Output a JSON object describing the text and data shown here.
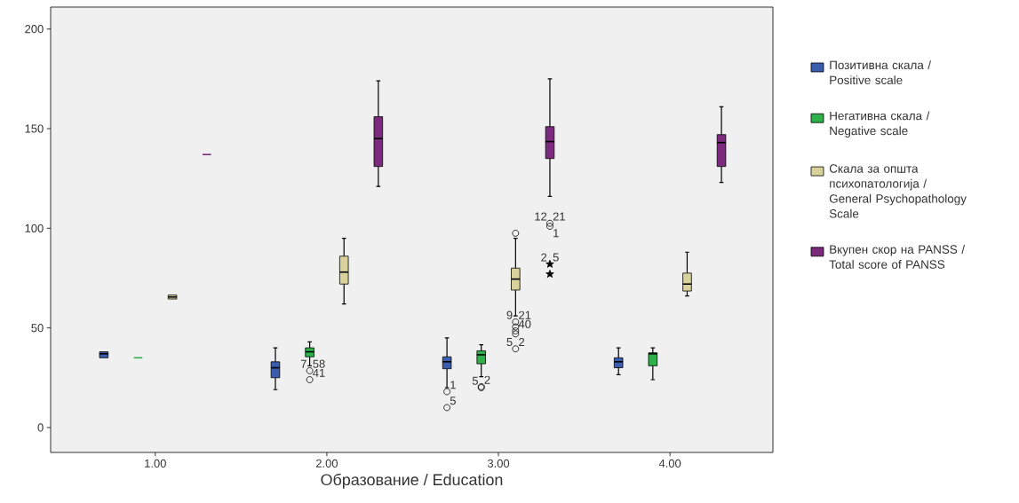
{
  "chart_data": {
    "type": "box",
    "xlabel": "Образование / Education",
    "xlim": [
      0.39,
      4.6
    ],
    "xticks": [
      {
        "value": 1,
        "label": "1.00"
      },
      {
        "value": 2,
        "label": "2.00"
      },
      {
        "value": 3,
        "label": "3.00"
      },
      {
        "value": 4,
        "label": "4.00"
      }
    ],
    "ylim": [
      -12.5,
      211
    ],
    "yticks": [
      0,
      50,
      100,
      150,
      200
    ],
    "legend": "right",
    "grid": false,
    "series": [
      {
        "name": "Позитивна скала / Positive scale",
        "color": "#3a5dae",
        "x": [
          0.7,
          1.7,
          2.7,
          3.7
        ],
        "boxes": [
          {
            "low": 35,
            "q1": 35,
            "median": 37,
            "q3": 38,
            "high": 38
          },
          {
            "low": 19,
            "q1": 25,
            "median": 30,
            "q3": 33,
            "high": 40
          },
          {
            "low": 20,
            "q1": 29.5,
            "median": 33,
            "q3": 35.5,
            "high": 45
          },
          {
            "low": 26.5,
            "q1": 30,
            "median": 33,
            "q3": 35,
            "high": 40
          }
        ]
      },
      {
        "name": "Негативна скала / Negative scale",
        "color": "#2eb14b",
        "x": [
          0.9,
          1.9,
          2.9,
          3.9
        ],
        "boxes": [
          {
            "low": 35,
            "q1": 35,
            "median": 35,
            "q3": 35,
            "high": 35
          },
          {
            "low": 31,
            "q1": 35.5,
            "median": 38,
            "q3": 40,
            "high": 43
          },
          {
            "low": 25.5,
            "q1": 32,
            "median": 36.5,
            "q3": 38.5,
            "high": 41.5
          },
          {
            "low": 24,
            "q1": 31,
            "median": 37,
            "q3": 37.5,
            "high": 40
          }
        ]
      },
      {
        "name": "Скала за општа психопатологија / General Psychopathology Scale",
        "color": "#d9d39b",
        "x": [
          1.1,
          2.1,
          3.1,
          4.1
        ],
        "boxes": [
          {
            "low": 64.5,
            "q1": 64.5,
            "median": 65.5,
            "q3": 66.5,
            "high": 66.5
          },
          {
            "low": 62,
            "q1": 72,
            "median": 78,
            "q3": 86,
            "high": 95
          },
          {
            "low": 56,
            "q1": 69,
            "median": 74.5,
            "q3": 80,
            "high": 95
          },
          {
            "low": 66,
            "q1": 68.5,
            "median": 72,
            "q3": 77.5,
            "high": 88
          }
        ]
      },
      {
        "name": "Вкупен скор на PANSS / Total score of PANSS",
        "color": "#7b2a7e",
        "x": [
          1.3,
          2.3,
          3.3,
          4.3
        ],
        "boxes": [
          {
            "low": 137,
            "q1": 137,
            "median": 137,
            "q3": 137,
            "high": 137
          },
          {
            "low": 121,
            "q1": 131,
            "median": 145,
            "q3": 156,
            "high": 174
          },
          {
            "low": 116,
            "q1": 135,
            "median": 143.5,
            "q3": 151,
            "high": 175
          },
          {
            "low": 123,
            "q1": 131,
            "median": 143,
            "q3": 147,
            "high": 161
          }
        ]
      },
      {
        "type": "scatter",
        "marker": "circle",
        "color": "#000000",
        "x": [
          1.9,
          1.9,
          2.7,
          2.7,
          2.9,
          2.9,
          3.1,
          3.1,
          3.1,
          3.1,
          3.1,
          3.1,
          3.3,
          3.3
        ],
        "values": [
          28.5,
          24,
          18,
          10,
          20.5,
          20,
          97.5,
          53,
          50.5,
          48.5,
          47,
          39.5,
          102.5,
          101
        ]
      },
      {
        "type": "scatter",
        "marker": "star",
        "color": "#000000",
        "x": [
          3.3,
          3.3
        ],
        "values": [
          82,
          77
        ]
      }
    ],
    "annotations": [
      {
        "text": "58",
        "x": 1.9,
        "y": 28.5
      },
      {
        "text": "7",
        "x": 1.9,
        "y": 28.5
      },
      {
        "text": "41",
        "x": 1.9,
        "y": 24
      },
      {
        "text": "1",
        "x": 2.7,
        "y": 18
      },
      {
        "text": "5",
        "x": 2.7,
        "y": 10
      },
      {
        "text": "2",
        "x": 2.9,
        "y": 20.5
      },
      {
        "text": "5",
        "x": 2.9,
        "y": 20
      },
      {
        "text": "21",
        "x": 3.1,
        "y": 53
      },
      {
        "text": "9",
        "x": 3.1,
        "y": 53
      },
      {
        "text": "40",
        "x": 3.1,
        "y": 48.5
      },
      {
        "text": "2",
        "x": 3.1,
        "y": 39.5
      },
      {
        "text": "5",
        "x": 3.1,
        "y": 39.5
      },
      {
        "text": "21",
        "x": 3.3,
        "y": 102.5
      },
      {
        "text": "12",
        "x": 3.3,
        "y": 102.5
      },
      {
        "text": "1",
        "x": 3.3,
        "y": 101
      },
      {
        "text": "5",
        "x": 3.3,
        "y": 82
      },
      {
        "text": "2",
        "x": 3.3,
        "y": 82
      }
    ]
  }
}
